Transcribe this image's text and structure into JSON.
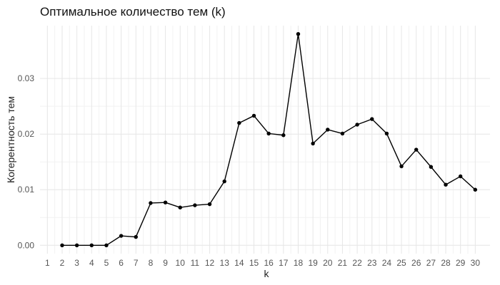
{
  "chart_data": {
    "type": "line",
    "title": "Оптимальное количество тем (k)",
    "xlabel": "k",
    "ylabel": "Когерентность тем",
    "x": [
      2,
      3,
      4,
      5,
      6,
      7,
      8,
      9,
      10,
      11,
      12,
      13,
      14,
      15,
      16,
      17,
      18,
      19,
      20,
      21,
      22,
      23,
      24,
      25,
      26,
      27,
      28,
      29,
      30
    ],
    "y": [
      0.0,
      0.0,
      0.0,
      0.0,
      0.0017,
      0.0015,
      0.0076,
      0.0077,
      0.0068,
      0.0072,
      0.0074,
      0.0115,
      0.022,
      0.0233,
      0.0201,
      0.0198,
      0.038,
      0.0183,
      0.0208,
      0.0201,
      0.0217,
      0.0227,
      0.0201,
      0.0142,
      0.0172,
      0.0141,
      0.0109,
      0.0124,
      0.01
    ],
    "x_ticks": [
      1,
      2,
      3,
      4,
      5,
      6,
      7,
      8,
      9,
      10,
      11,
      12,
      13,
      14,
      15,
      16,
      17,
      18,
      19,
      20,
      21,
      22,
      23,
      24,
      25,
      26,
      27,
      28,
      29,
      30
    ],
    "y_ticks": [
      0.0,
      0.01,
      0.02,
      0.03
    ],
    "y_tick_labels": [
      "0.00",
      "0.01",
      "0.02",
      "0.03"
    ],
    "xlim": [
      0.5,
      31
    ],
    "ylim": [
      -0.0015,
      0.0395
    ],
    "grid": true,
    "legend": "none",
    "line_color": "#000000",
    "point_color": "#000000"
  }
}
